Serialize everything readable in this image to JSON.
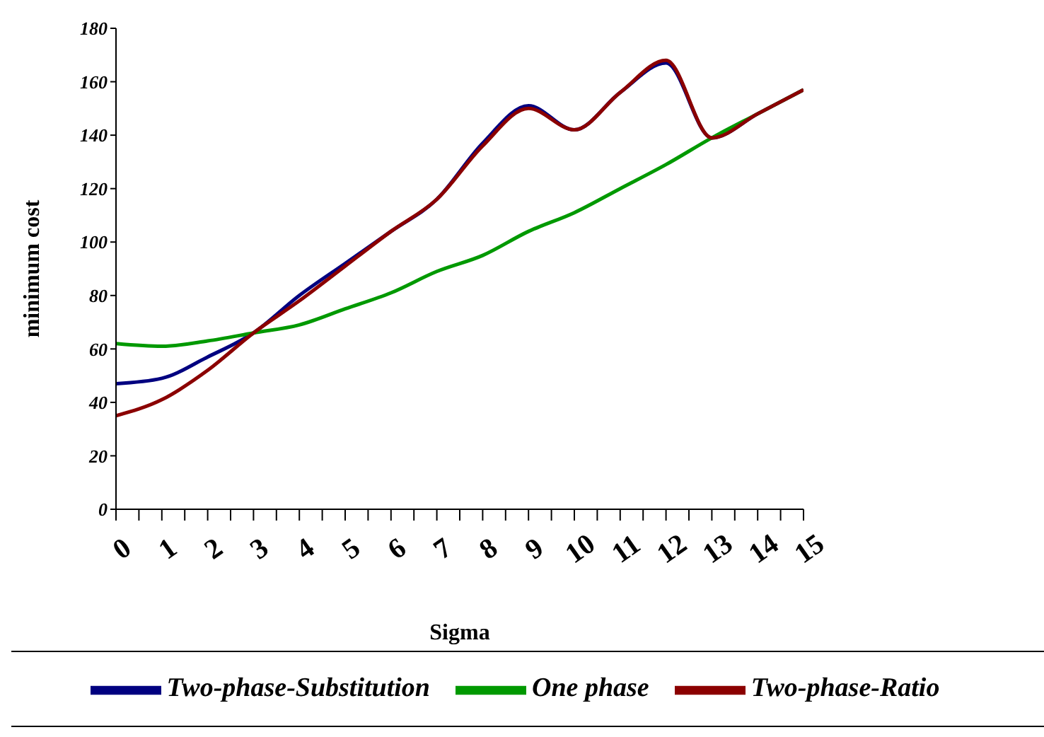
{
  "chart_data": {
    "type": "line",
    "xlabel": "Sigma",
    "ylabel": "minimum cost",
    "x": [
      0,
      1,
      2,
      3,
      4,
      5,
      6,
      7,
      8,
      9,
      10,
      11,
      12,
      13,
      14,
      15
    ],
    "xlim": [
      0,
      15
    ],
    "xticks": [
      0,
      {
        "value": 0.5,
        "label": null
      },
      1,
      {
        "value": 1.5,
        "label": null
      },
      2,
      {
        "value": 2.5,
        "label": null
      },
      3,
      {
        "value": 3.5,
        "label": null
      },
      4,
      {
        "value": 4.5,
        "label": null
      },
      5,
      {
        "value": 5.5,
        "label": null
      },
      6,
      {
        "value": 6.5,
        "label": null
      },
      7,
      {
        "value": 7.5,
        "label": null
      },
      8,
      {
        "value": 8.5,
        "label": null
      },
      9,
      {
        "value": 9.5,
        "label": null
      },
      10,
      {
        "value": 10.5,
        "label": null
      },
      11,
      {
        "value": 11.5,
        "label": null
      },
      12,
      {
        "value": 12.5,
        "label": null
      },
      13,
      {
        "value": 13.5,
        "label": null
      },
      14,
      {
        "value": 14.5,
        "label": null
      },
      15
    ],
    "ylim": [
      0,
      180
    ],
    "yticks": [
      0,
      20,
      40,
      60,
      80,
      100,
      120,
      140,
      160,
      180
    ],
    "grid": false,
    "legend": "bottom",
    "marker": "none",
    "line_style": "solid",
    "series": [
      {
        "name": "Two-phase-Substitution",
        "color": "#000080",
        "values": [
          47,
          49,
          57,
          66,
          80,
          92,
          104,
          116,
          137,
          151,
          142,
          156,
          167,
          139,
          148,
          157
        ]
      },
      {
        "name": "One phase",
        "color": "#009900",
        "values": [
          62,
          61,
          63,
          66,
          69,
          75,
          81,
          89,
          95,
          104,
          111,
          120,
          129,
          139,
          148,
          157
        ]
      },
      {
        "name": "Two-phase-Ratio",
        "color": "#8b0000",
        "values": [
          35,
          41,
          52,
          66,
          78,
          91,
          104,
          116,
          136,
          150,
          142,
          156,
          168,
          139,
          148,
          157
        ]
      }
    ]
  }
}
